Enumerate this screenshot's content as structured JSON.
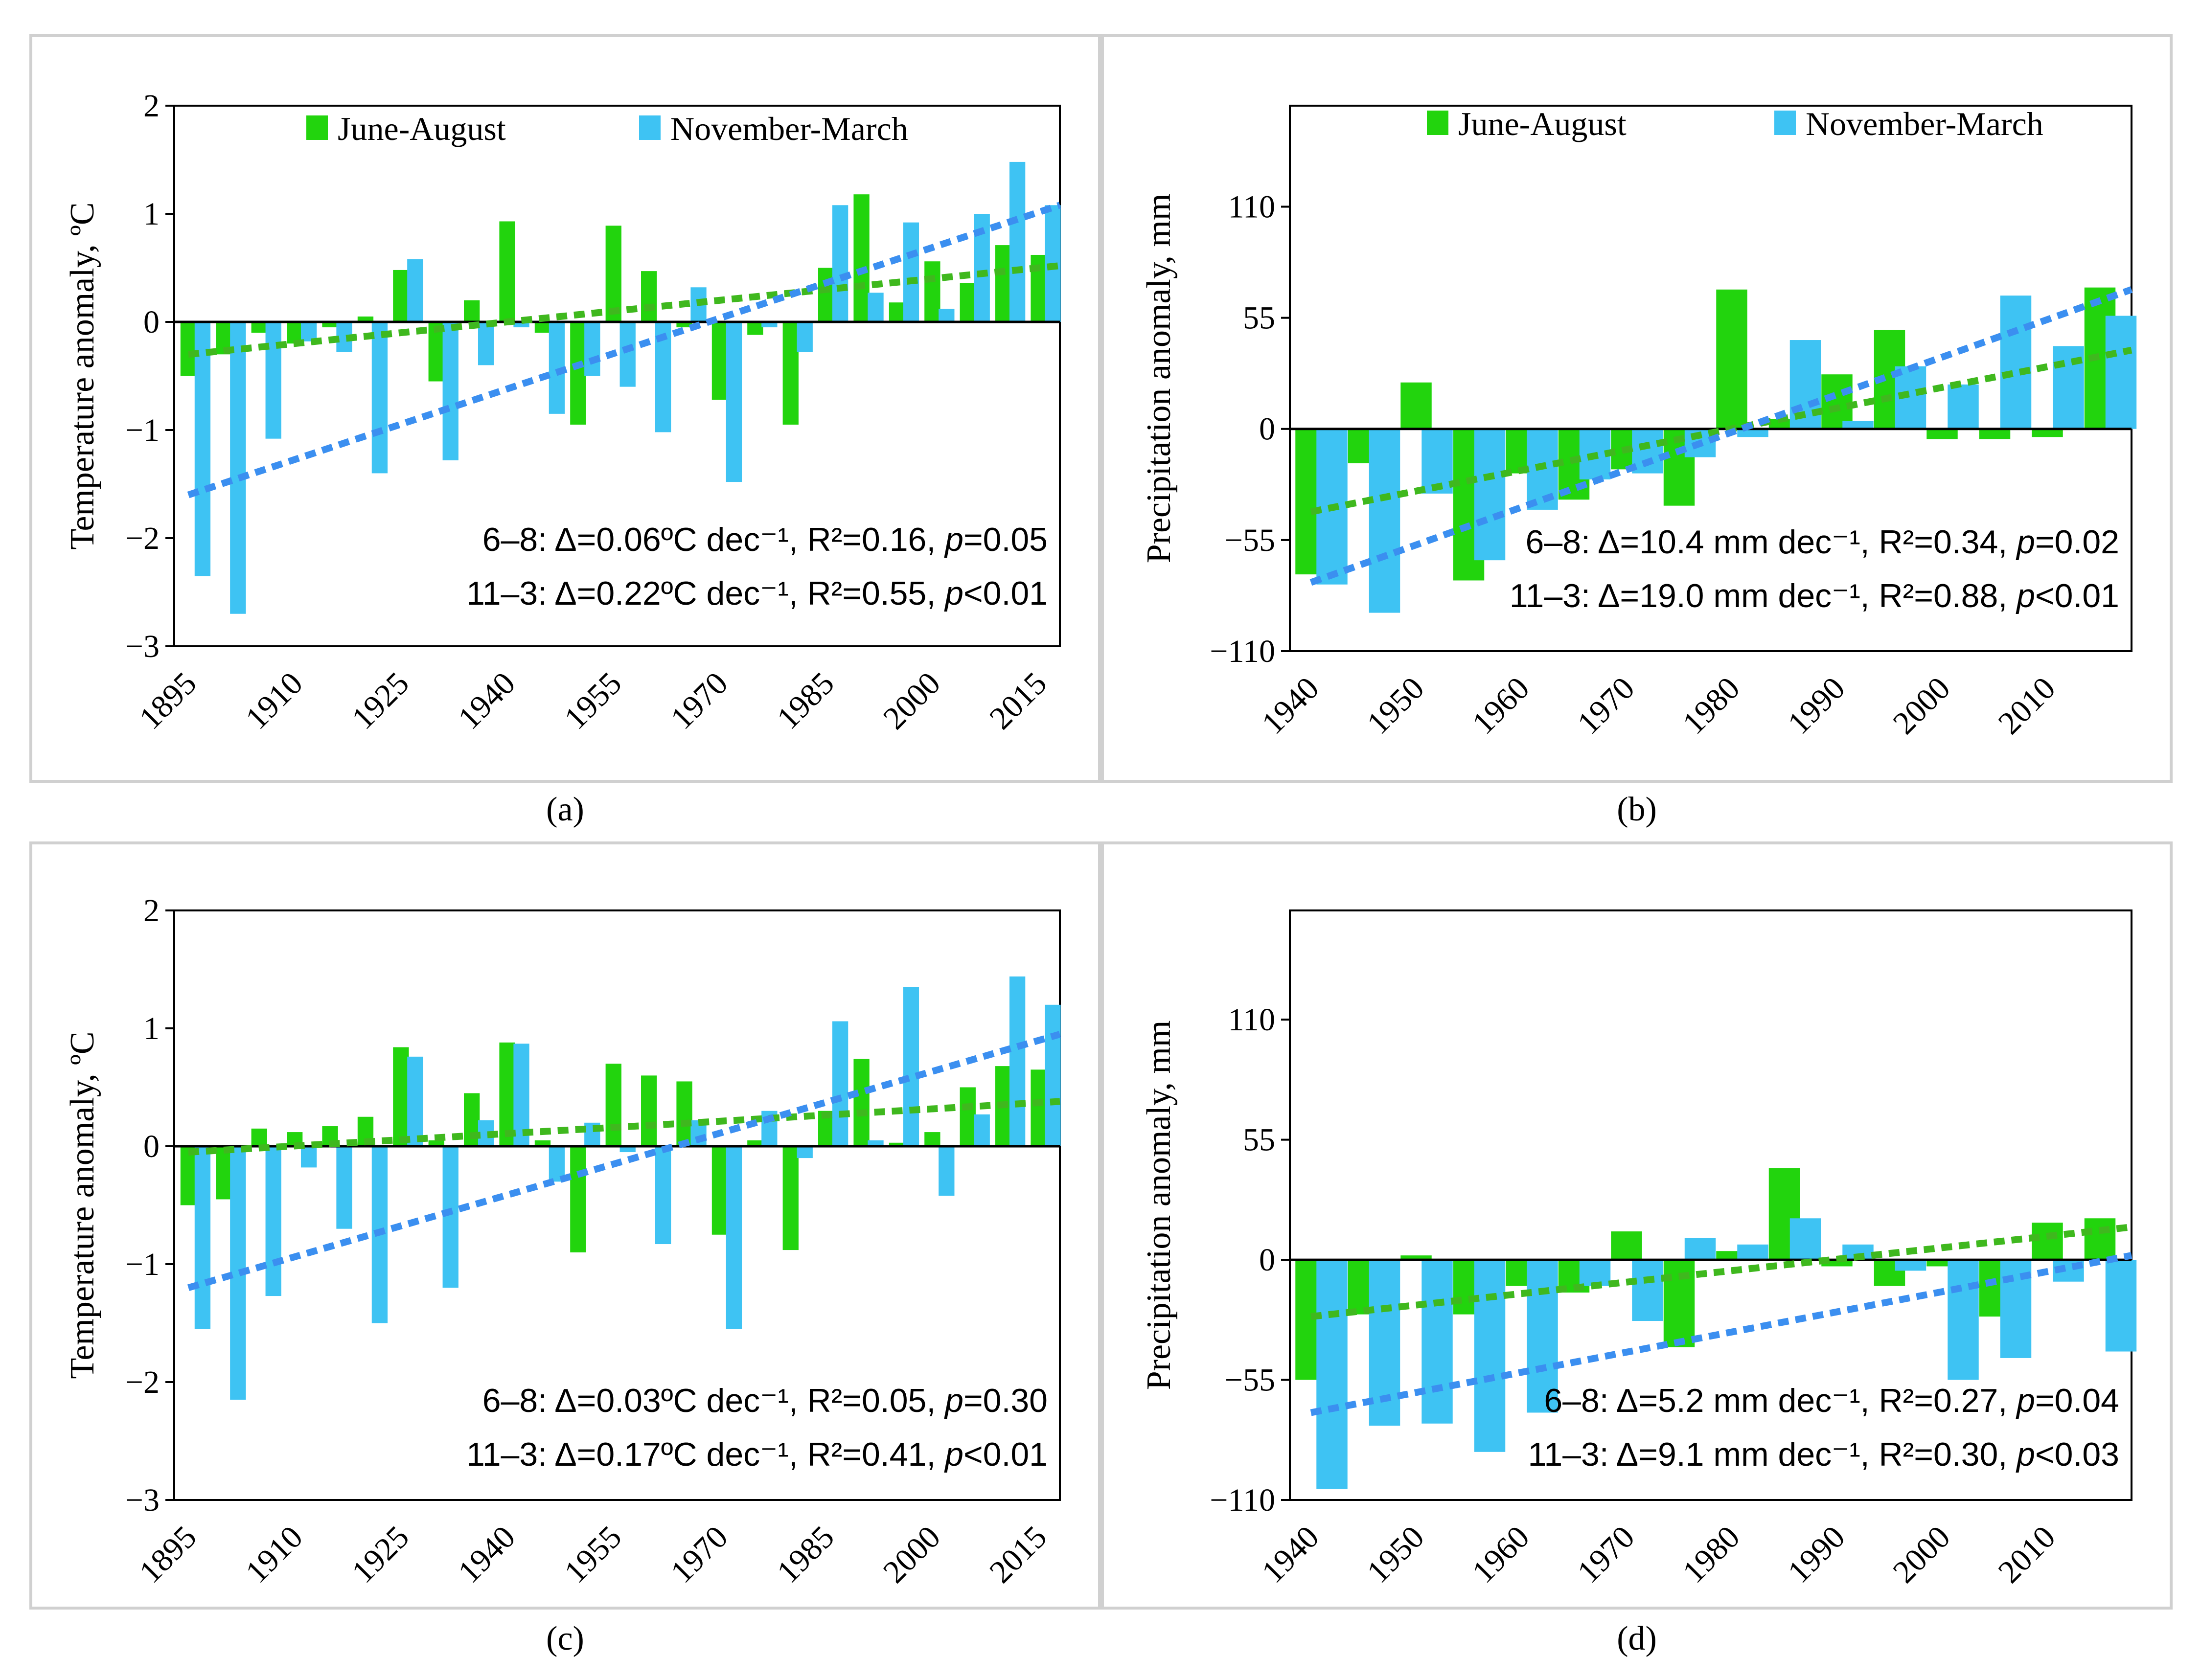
{
  "colors": {
    "june_august": "#22d40d",
    "november_march": "#3ec3f3",
    "trend_june_august": "#3fb81e",
    "trend_november_march": "#3b8ff0",
    "axis": "#000000"
  },
  "captions": {
    "a": "(a)",
    "b": "(b)",
    "c": "(c)",
    "d": "(d)"
  },
  "chart_data": [
    {
      "id": "a",
      "type": "bar",
      "title": "",
      "ylabel": "Temperature anomaly, ºC",
      "xlabel": "",
      "ylim": [
        -3,
        2
      ],
      "yticks": [
        2,
        1,
        0,
        -1,
        -2,
        -3
      ],
      "xrange": [
        1893,
        2018
      ],
      "xticks": [
        1895,
        1910,
        1925,
        1940,
        1955,
        1970,
        1985,
        2000,
        2015
      ],
      "legend": [
        "June-August",
        "November-March"
      ],
      "legend_position": "top",
      "series": [
        {
          "name": "June-August",
          "x": [
            1895,
            1900,
            1905,
            1910,
            1915,
            1920,
            1925,
            1930,
            1935,
            1940,
            1945,
            1950,
            1955,
            1960,
            1965,
            1970,
            1975,
            1980,
            1985,
            1990,
            1995,
            2000,
            2005,
            2010,
            2015
          ],
          "values": [
            -0.5,
            -0.3,
            -0.1,
            -0.2,
            -0.05,
            0.05,
            0.48,
            -0.55,
            0.2,
            0.93,
            -0.1,
            -0.95,
            0.89,
            0.47,
            -0.05,
            -0.72,
            -0.12,
            -0.95,
            0.5,
            1.18,
            0.18,
            0.56,
            0.36,
            0.71,
            0.62
          ]
        },
        {
          "name": "November-March",
          "x": [
            1897,
            1902,
            1907,
            1912,
            1917,
            1922,
            1927,
            1932,
            1937,
            1942,
            1947,
            1952,
            1957,
            1962,
            1967,
            1972,
            1977,
            1982,
            1987,
            1992,
            1997,
            2002,
            2007,
            2012,
            2017
          ],
          "values": [
            -2.35,
            -2.7,
            -1.08,
            -0.18,
            -0.28,
            -1.4,
            0.58,
            -1.28,
            -0.4,
            -0.05,
            -0.85,
            -0.5,
            -0.6,
            -1.02,
            0.32,
            -1.48,
            -0.05,
            -0.28,
            1.08,
            0.27,
            0.92,
            0.12,
            1.0,
            1.48,
            1.08
          ]
        }
      ],
      "trends": [
        {
          "name": "June-August",
          "x": [
            1895,
            2018
          ],
          "y": [
            -0.3,
            0.52
          ]
        },
        {
          "name": "November-March",
          "x": [
            1895,
            2018
          ],
          "y": [
            -1.6,
            1.08
          ]
        }
      ],
      "annotations": [
        "6–8: Δ=0.06ºC dec⁻¹, R²=0.16, p=0.05",
        "11–3: Δ=0.22ºC dec⁻¹, R²=0.55, p<0.01"
      ]
    },
    {
      "id": "b",
      "type": "bar",
      "title": "",
      "ylabel": "Precipitation anomaly, mm",
      "xlabel": "",
      "ylim": [
        -110,
        160
      ],
      "yticks": [
        110,
        55,
        0,
        -55,
        -110
      ],
      "xrange": [
        1938,
        2018
      ],
      "xticks": [
        1940,
        1950,
        1960,
        1970,
        1980,
        1990,
        2000,
        2010
      ],
      "legend": [
        "June-August",
        "November-March"
      ],
      "legend_position": "top",
      "series": [
        {
          "name": "June-August",
          "x": [
            1940,
            1945,
            1950,
            1955,
            1960,
            1965,
            1970,
            1975,
            1980,
            1985,
            1990,
            1995,
            2000,
            2005,
            2010,
            2015
          ],
          "values": [
            -72,
            -17,
            23,
            -75,
            -22,
            -35,
            -20,
            -38,
            69,
            5,
            27,
            49,
            -5,
            -5,
            -4,
            70
          ]
        },
        {
          "name": "November-March",
          "x": [
            1942,
            1947,
            1952,
            1957,
            1962,
            1967,
            1972,
            1977,
            1982,
            1987,
            1992,
            1997,
            2002,
            2007,
            2012,
            2017
          ],
          "values": [
            -77,
            -91,
            -32,
            -65,
            -40,
            -25,
            -22,
            -14,
            -4,
            44,
            4,
            31,
            22,
            66,
            41,
            56
          ]
        }
      ],
      "trends": [
        {
          "name": "June-August",
          "x": [
            1940,
            2018
          ],
          "y": [
            -41,
            39
          ]
        },
        {
          "name": "November-March",
          "x": [
            1940,
            2018
          ],
          "y": [
            -76,
            69
          ]
        }
      ],
      "annotations": [
        "6–8: Δ=10.4 mm dec⁻¹, R²=0.34, p=0.02",
        "11–3: Δ=19.0 mm dec⁻¹, R²=0.88, p<0.01"
      ]
    },
    {
      "id": "c",
      "type": "bar",
      "title": "",
      "ylabel": "Temperature anomaly, ºC",
      "xlabel": "",
      "ylim": [
        -3,
        2
      ],
      "yticks": [
        2,
        1,
        0,
        -1,
        -2,
        -3
      ],
      "xrange": [
        1893,
        2018
      ],
      "xticks": [
        1895,
        1910,
        1925,
        1940,
        1955,
        1970,
        1985,
        2000,
        2015
      ],
      "legend": [],
      "series": [
        {
          "name": "June-August",
          "x": [
            1895,
            1900,
            1905,
            1910,
            1915,
            1920,
            1925,
            1930,
            1935,
            1940,
            1945,
            1950,
            1955,
            1960,
            1965,
            1970,
            1975,
            1980,
            1985,
            1990,
            1995,
            2000,
            2005,
            2010,
            2015
          ],
          "values": [
            -0.5,
            -0.45,
            0.15,
            0.12,
            0.17,
            0.25,
            0.84,
            0.05,
            0.45,
            0.88,
            0.05,
            -0.9,
            0.7,
            0.6,
            0.55,
            -0.75,
            0.05,
            -0.88,
            0.3,
            0.74,
            0.03,
            0.12,
            0.5,
            0.68,
            0.65
          ]
        },
        {
          "name": "November-March",
          "x": [
            1897,
            1902,
            1907,
            1912,
            1917,
            1922,
            1927,
            1932,
            1937,
            1942,
            1947,
            1952,
            1957,
            1962,
            1967,
            1972,
            1977,
            1982,
            1987,
            1992,
            1997,
            2002,
            2007,
            2012,
            2017
          ],
          "values": [
            -1.55,
            -2.15,
            -1.27,
            -0.18,
            -0.7,
            -1.5,
            0.76,
            -1.2,
            0.22,
            0.87,
            -0.3,
            0.2,
            -0.05,
            -0.83,
            0.22,
            -1.55,
            0.3,
            -0.1,
            1.06,
            0.05,
            1.35,
            -0.42,
            0.27,
            1.44,
            1.2
          ]
        }
      ],
      "trends": [
        {
          "name": "June-August",
          "x": [
            1895,
            2018
          ],
          "y": [
            -0.05,
            0.38
          ]
        },
        {
          "name": "November-March",
          "x": [
            1895,
            2018
          ],
          "y": [
            -1.2,
            0.95
          ]
        }
      ],
      "annotations": [
        "6–8: Δ=0.03ºC dec⁻¹, R²=0.05, p=0.30",
        "11–3: Δ=0.17ºC dec⁻¹, R²=0.41, p<0.01"
      ]
    },
    {
      "id": "d",
      "type": "bar",
      "title": "",
      "ylabel": "Precipitation anomaly, mm",
      "xlabel": "",
      "ylim": [
        -110,
        160
      ],
      "yticks": [
        110,
        55,
        0,
        -55,
        -110
      ],
      "xrange": [
        1938,
        2018
      ],
      "xticks": [
        1940,
        1950,
        1960,
        1970,
        1980,
        1990,
        2000,
        2010
      ],
      "legend": [],
      "series": [
        {
          "name": "June-August",
          "x": [
            1940,
            1945,
            1950,
            1955,
            1960,
            1965,
            1970,
            1975,
            1980,
            1985,
            1990,
            1995,
            2000,
            2005,
            2010,
            2015
          ],
          "values": [
            -55,
            -25,
            2,
            -25,
            -12,
            -15,
            13,
            -40,
            4,
            42,
            -3,
            -12,
            -3,
            -26,
            17,
            19
          ]
        },
        {
          "name": "November-March",
          "x": [
            1942,
            1947,
            1952,
            1957,
            1962,
            1967,
            1972,
            1977,
            1982,
            1987,
            1992,
            1997,
            2002,
            2007,
            2012,
            2017
          ],
          "values": [
            -105,
            -76,
            -75,
            -88,
            -70,
            -12,
            -28,
            10,
            7,
            19,
            7,
            -5,
            -55,
            -45,
            -10,
            -42
          ]
        }
      ],
      "trends": [
        {
          "name": "June-August",
          "x": [
            1940,
            2018
          ],
          "y": [
            -26,
            15
          ]
        },
        {
          "name": "November-March",
          "x": [
            1940,
            2018
          ],
          "y": [
            -70,
            2
          ]
        }
      ],
      "annotations": [
        "6–8: Δ=5.2 mm dec⁻¹, R²=0.27, p=0.04",
        "11–3: Δ=9.1 mm dec⁻¹, R²=0.30, p<0.03"
      ]
    }
  ]
}
